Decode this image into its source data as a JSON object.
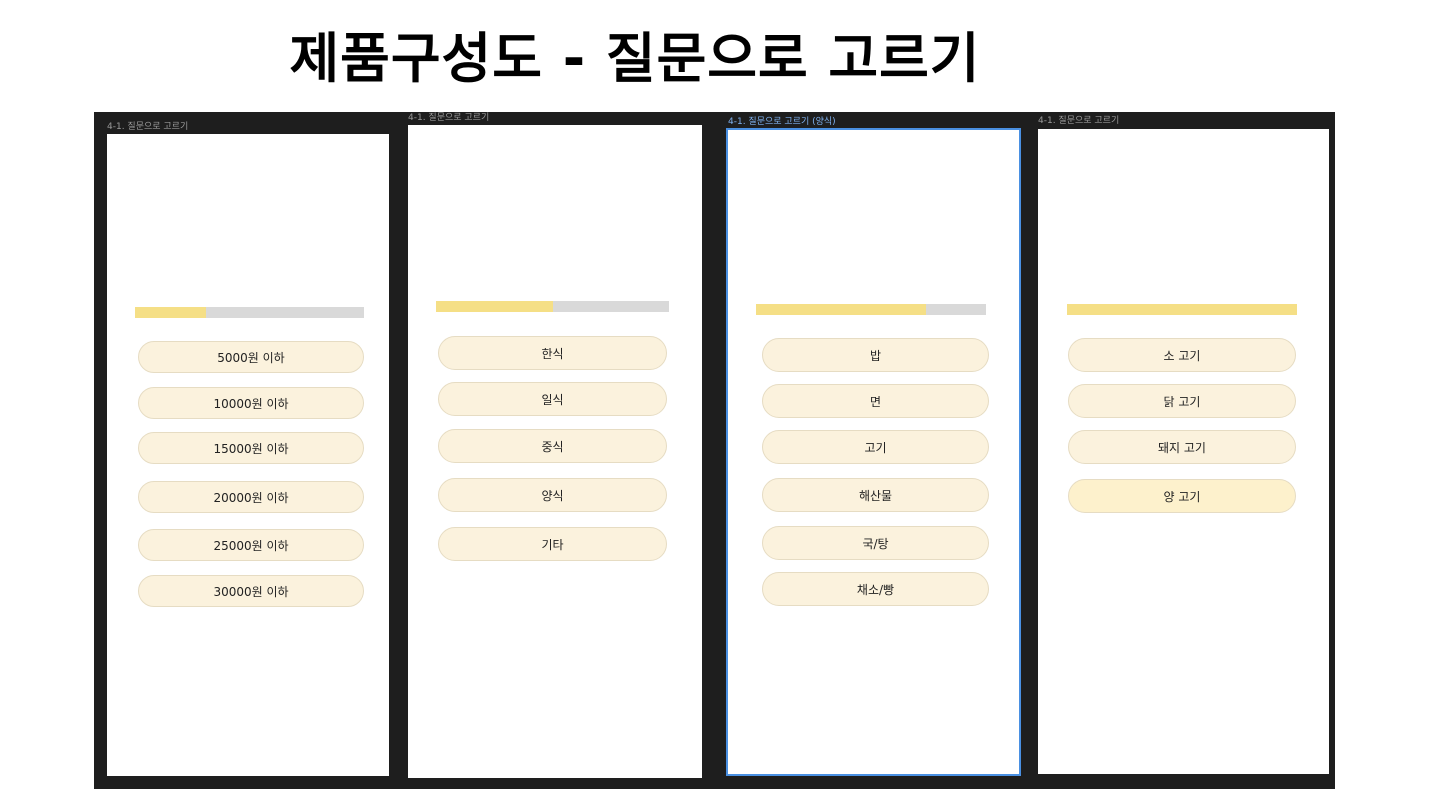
{
  "page": {
    "title": "제품구성도 - 질문으로 고르기"
  },
  "colors": {
    "canvas_bg": "#1e1e1e",
    "progress_fill": "#f5df86",
    "progress_track": "#d9d9d9",
    "option_bg": "#fbf2dd",
    "option_border": "#e6dcc3",
    "selection": "#4a90e2"
  },
  "frames": [
    {
      "label": "4-1. 질문으로 고르기",
      "progress": 0.31,
      "options": [
        "5000원 이하",
        "10000원 이하",
        "15000원 이하",
        "20000원 이하",
        "25000원 이하",
        "30000원 이하"
      ]
    },
    {
      "label": "4-1. 질문으로 고르기",
      "progress": 0.5,
      "options": [
        "한식",
        "일식",
        "중식",
        "양식",
        "기타"
      ]
    },
    {
      "label": "4-1. 질문으로 고르기 (양식)",
      "selected": true,
      "progress": 0.74,
      "options": [
        "밥",
        "면",
        "고기",
        "해산물",
        "국/탕",
        "채소/빵"
      ]
    },
    {
      "label": "4-1. 질문으로 고르기",
      "progress": 1.0,
      "options": [
        "소 고기",
        "닭 고기",
        "돼지 고기",
        "양 고기"
      ]
    }
  ]
}
